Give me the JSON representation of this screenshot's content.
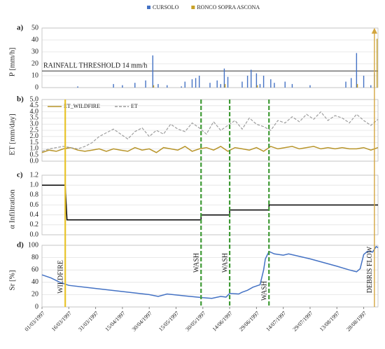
{
  "chart_data": [
    {
      "type": "bar",
      "panel_label": "a)",
      "ylabel": "P [mm/h]",
      "xlim": [
        0,
        188
      ],
      "ylim": [
        0,
        50
      ],
      "yticks": [
        0,
        10,
        20,
        30,
        40,
        50
      ],
      "grid": true,
      "legend": "top",
      "threshold": {
        "value": 14,
        "label": "RAINFALL THRESHOLD 14 mm/h"
      },
      "series": [
        {
          "name": "CURSOLO",
          "color": "#4472c4",
          "x": [
            20,
            40,
            45,
            52,
            58,
            62,
            65,
            70,
            78,
            80,
            84,
            86,
            88,
            94,
            98,
            100,
            102,
            104,
            112,
            115,
            117,
            120,
            122,
            124,
            128,
            130,
            136,
            140,
            150,
            170,
            173,
            176,
            180,
            184,
            186
          ],
          "values": [
            1,
            3,
            2,
            4,
            6,
            27,
            3,
            2,
            1,
            5,
            7,
            8,
            10,
            4,
            6,
            3,
            16,
            9,
            5,
            10,
            15,
            12,
            3,
            10,
            7,
            4,
            5,
            3,
            2,
            5,
            8,
            29,
            10,
            2,
            12
          ]
        },
        {
          "name": "RONCO SOPRA ASCONA",
          "color": "#c9a227",
          "x": [
            62,
            102,
            120,
            176,
            187
          ],
          "values": [
            2,
            3,
            2,
            3,
            41
          ]
        }
      ]
    },
    {
      "type": "line",
      "panel_label": "b)",
      "ylabel": "ET [mm/day]",
      "xlim": [
        0,
        188
      ],
      "ylim": [
        0,
        5
      ],
      "yticks": [
        {
          "value": 0,
          "label": "0.0"
        },
        0.5,
        {
          "value": 1,
          "label": "1.0"
        },
        1.5,
        {
          "value": 2,
          "label": "2.0"
        },
        2.5,
        {
          "value": 3,
          "label": "3.0"
        },
        3.5,
        {
          "value": 4,
          "label": "4.0"
        },
        4.5,
        {
          "value": 5,
          "label": "5.0"
        }
      ],
      "grid": true,
      "legend": "upper left",
      "x": [
        0,
        4,
        8,
        12,
        16,
        20,
        24,
        28,
        32,
        36,
        40,
        44,
        48,
        52,
        56,
        60,
        64,
        68,
        72,
        76,
        80,
        84,
        88,
        92,
        96,
        100,
        104,
        108,
        112,
        116,
        120,
        124,
        128,
        132,
        136,
        140,
        144,
        148,
        152,
        156,
        160,
        164,
        168,
        172,
        176,
        180,
        184,
        188
      ],
      "series": [
        {
          "name": "ET_WILDFIRE",
          "color": "#b8952a",
          "dashed": false,
          "values": [
            0.7,
            0.9,
            0.8,
            1.0,
            1.1,
            0.9,
            0.8,
            0.9,
            1.0,
            0.8,
            1.0,
            0.9,
            0.8,
            1.1,
            0.9,
            1.0,
            0.7,
            1.1,
            1.0,
            0.9,
            1.2,
            0.8,
            1.0,
            1.1,
            0.9,
            1.2,
            0.8,
            1.1,
            1.0,
            0.9,
            1.1,
            0.8,
            1.2,
            1.0,
            1.1,
            1.2,
            1.0,
            1.1,
            1.2,
            1.0,
            1.1,
            1.0,
            1.1,
            1.0,
            1.0,
            1.1,
            0.9,
            1.1
          ]
        },
        {
          "name": "ET",
          "color": "#9e9e9e",
          "dashed": true,
          "values": [
            0.8,
            1.0,
            1.1,
            1.2,
            1.1,
            1.0,
            1.2,
            1.5,
            2.0,
            2.3,
            2.6,
            2.2,
            1.8,
            2.4,
            2.7,
            2.0,
            2.5,
            2.2,
            3.0,
            2.6,
            2.4,
            3.1,
            2.7,
            2.2,
            3.2,
            2.5,
            2.9,
            3.3,
            2.6,
            3.5,
            3.0,
            2.8,
            2.5,
            3.3,
            3.1,
            3.6,
            3.2,
            3.8,
            3.4,
            4.0,
            3.3,
            3.7,
            3.5,
            3.1,
            3.8,
            3.3,
            2.9,
            3.4
          ]
        }
      ]
    },
    {
      "type": "line",
      "panel_label": "c)",
      "ylabel": "α Infiltration",
      "xlim": [
        0,
        188
      ],
      "ylim": [
        0,
        1.2
      ],
      "yticks": [
        {
          "value": 0,
          "label": "0.0"
        },
        0.2,
        0.4,
        0.6,
        0.8,
        {
          "value": 1,
          "label": "1.0"
        },
        1.2
      ],
      "grid": true,
      "series": [
        {
          "color": "#000000",
          "dashed": false,
          "x": [
            0,
            13,
            14,
            89,
            89,
            105,
            105,
            127,
            127,
            188
          ],
          "values": [
            1,
            1,
            0.3,
            0.3,
            0.4,
            0.4,
            0.5,
            0.5,
            0.6,
            0.6
          ]
        }
      ]
    },
    {
      "type": "line",
      "panel_label": "d)",
      "ylabel": "Sr [%]",
      "xlim": [
        0,
        188
      ],
      "ylim": [
        0,
        100
      ],
      "yticks": [
        0,
        20,
        40,
        60,
        80,
        100
      ],
      "grid": true,
      "series": [
        {
          "color": "#4472c4",
          "dashed": false,
          "x": [
            0,
            5,
            10,
            15,
            30,
            45,
            60,
            65,
            70,
            80,
            90,
            95,
            100,
            103,
            105,
            110,
            112,
            115,
            118,
            122,
            124,
            125,
            127,
            130,
            135,
            138,
            150,
            165,
            172,
            176,
            178,
            180,
            182,
            185,
            187,
            188
          ],
          "values": [
            52,
            47,
            40,
            35,
            30,
            25,
            20,
            17,
            21,
            18,
            15,
            14,
            17,
            16,
            22,
            21,
            24,
            27,
            32,
            36,
            60,
            78,
            90,
            86,
            84,
            86,
            78,
            66,
            60,
            57,
            62,
            85,
            90,
            89,
            98,
            96
          ]
        }
      ],
      "xticks": [
        {
          "value": 0,
          "label": "01/03/1997"
        },
        {
          "value": 15,
          "label": "16/03/1997"
        },
        {
          "value": 30,
          "label": "31/03/1997"
        },
        {
          "value": 45,
          "label": "15/04/1997"
        },
        {
          "value": 60,
          "label": "30/04/1997"
        },
        {
          "value": 75,
          "label": "15/05/1997"
        },
        {
          "value": 90,
          "label": "30/05/1997"
        },
        {
          "value": 105,
          "label": "14/06/1997"
        },
        {
          "value": 120,
          "label": "29/06/1997"
        },
        {
          "value": 135,
          "label": "14/07/1997"
        },
        {
          "value": 150,
          "label": "29/07/1997"
        },
        {
          "value": 165,
          "label": "13/08/1997"
        },
        {
          "value": 180,
          "label": "28/08/1997"
        }
      ],
      "events": [
        {
          "label": "WILDFIRE",
          "x": 13,
          "color": "#e8c32a",
          "dashed": false
        },
        {
          "label": "WASH",
          "x": 89,
          "color": "#3f9a35",
          "dashed": true
        },
        {
          "label": "WASH",
          "x": 105,
          "color": "#3f9a35",
          "dashed": true
        },
        {
          "label": "WASH",
          "x": 127,
          "color": "#3f9a35",
          "dashed": true
        },
        {
          "label": "DEBRIS FLOW",
          "x": 186,
          "color": "#d3a640",
          "dashed": false,
          "arrow": true
        }
      ]
    }
  ]
}
